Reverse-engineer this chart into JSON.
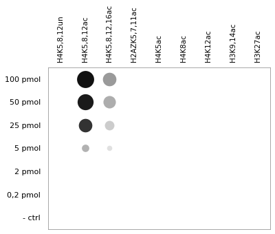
{
  "col_labels": [
    "H4K5,8,12un",
    "H4K5,8,12ac",
    "H4K5,8,12,16ac",
    "H2AZK5,7,11ac",
    "H4K5ac",
    "H4K8ac",
    "H4K12ac",
    "H3K9,14ac",
    "H3K27ac"
  ],
  "row_labels": [
    "100 pmol",
    "50 pmol",
    "25 pmol",
    "5 pmol",
    "2 pmol",
    "0,2 pmol",
    "- ctrl"
  ],
  "dots": [
    {
      "col": 1,
      "row": 0,
      "size": 320,
      "color": "#111111",
      "alpha": 1.0
    },
    {
      "col": 1,
      "row": 1,
      "size": 280,
      "color": "#1a1a1a",
      "alpha": 1.0
    },
    {
      "col": 1,
      "row": 2,
      "size": 200,
      "color": "#333333",
      "alpha": 1.0
    },
    {
      "col": 1,
      "row": 3,
      "size": 60,
      "color": "#aaaaaa",
      "alpha": 0.9
    },
    {
      "col": 2,
      "row": 0,
      "size": 200,
      "color": "#888888",
      "alpha": 0.85
    },
    {
      "col": 2,
      "row": 1,
      "size": 170,
      "color": "#999999",
      "alpha": 0.8
    },
    {
      "col": 2,
      "row": 2,
      "size": 100,
      "color": "#bbbbbb",
      "alpha": 0.75
    },
    {
      "col": 2,
      "row": 3,
      "size": 30,
      "color": "#cccccc",
      "alpha": 0.6
    }
  ],
  "background_color": "#ffffff",
  "grid_color": "#cccccc",
  "title": "",
  "fig_width": 4.0,
  "fig_height": 3.4,
  "font_size_labels": 7.5,
  "font_size_row": 8.0
}
